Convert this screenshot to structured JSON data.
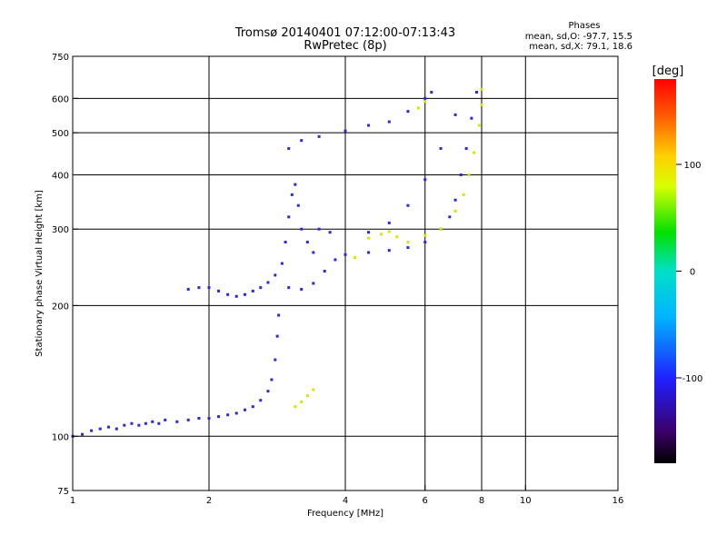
{
  "chart_data": {
    "type": "scatter",
    "title": "Tromsø 20140401 07:12:00-07:13:43",
    "subtitle": "RwPretec (8p)",
    "xlabel": "Frequency [MHz]",
    "ylabel": "Stationary phase Virtual Height [km]",
    "x_scale": "log",
    "y_scale": "log",
    "xlim": [
      1,
      16
    ],
    "ylim": [
      75,
      750
    ],
    "x_ticks": [
      1,
      2,
      4,
      6,
      8,
      10,
      16
    ],
    "y_ticks": [
      75,
      100,
      200,
      300,
      400,
      500,
      600,
      750
    ],
    "x_gridlines": [
      2,
      4,
      6,
      8,
      10
    ],
    "y_gridlines": [
      100,
      200,
      300,
      400,
      500,
      600
    ],
    "grid": true,
    "stats": {
      "heading": "Phases",
      "o_line": "mean, sd,O: -97.7, 15.5",
      "x_line": "mean, sd,X:  79.1, 18.6"
    },
    "colorbar": {
      "label": "[deg]",
      "range": [
        -180,
        180
      ],
      "ticks": [
        100,
        0,
        -100
      ]
    },
    "series": [
      {
        "name": "O",
        "mean_phase": -97.7,
        "sd_phase": 15.5,
        "points": [
          [
            1.0,
            100
          ],
          [
            1.05,
            101
          ],
          [
            1.1,
            103
          ],
          [
            1.15,
            104
          ],
          [
            1.2,
            105
          ],
          [
            1.25,
            104
          ],
          [
            1.3,
            106
          ],
          [
            1.35,
            107
          ],
          [
            1.4,
            106
          ],
          [
            1.45,
            107
          ],
          [
            1.5,
            108
          ],
          [
            1.55,
            107
          ],
          [
            1.6,
            109
          ],
          [
            1.7,
            108
          ],
          [
            1.8,
            109
          ],
          [
            1.9,
            110
          ],
          [
            2.0,
            110
          ],
          [
            2.1,
            111
          ],
          [
            2.2,
            112
          ],
          [
            2.3,
            113
          ],
          [
            2.4,
            115
          ],
          [
            2.5,
            117
          ],
          [
            2.6,
            121
          ],
          [
            2.7,
            127
          ],
          [
            2.75,
            135
          ],
          [
            2.8,
            150
          ],
          [
            2.83,
            170
          ],
          [
            2.85,
            190
          ],
          [
            1.8,
            218
          ],
          [
            1.9,
            220
          ],
          [
            2.0,
            220
          ],
          [
            2.1,
            216
          ],
          [
            2.2,
            212
          ],
          [
            2.3,
            210
          ],
          [
            2.4,
            212
          ],
          [
            2.5,
            216
          ],
          [
            2.6,
            220
          ],
          [
            2.7,
            226
          ],
          [
            2.8,
            235
          ],
          [
            2.9,
            250
          ],
          [
            2.95,
            280
          ],
          [
            3.0,
            320
          ],
          [
            3.05,
            360
          ],
          [
            3.1,
            380
          ],
          [
            3.15,
            340
          ],
          [
            3.2,
            300
          ],
          [
            3.3,
            280
          ],
          [
            3.4,
            265
          ],
          [
            3.5,
            300
          ],
          [
            3.7,
            295
          ],
          [
            3.0,
            220
          ],
          [
            3.2,
            218
          ],
          [
            3.4,
            225
          ],
          [
            3.6,
            240
          ],
          [
            3.8,
            255
          ],
          [
            4.0,
            262
          ],
          [
            4.5,
            265
          ],
          [
            5.0,
            268
          ],
          [
            5.5,
            272
          ],
          [
            6.0,
            280
          ],
          [
            6.5,
            300
          ],
          [
            6.8,
            320
          ],
          [
            7.0,
            350
          ],
          [
            7.2,
            400
          ],
          [
            7.4,
            460
          ],
          [
            7.6,
            540
          ],
          [
            7.8,
            620
          ],
          [
            4.5,
            295
          ],
          [
            5.0,
            310
          ],
          [
            5.5,
            340
          ],
          [
            6.0,
            390
          ],
          [
            6.5,
            460
          ],
          [
            7.0,
            550
          ],
          [
            3.0,
            460
          ],
          [
            3.2,
            480
          ],
          [
            3.5,
            490
          ],
          [
            4.0,
            505
          ],
          [
            4.5,
            520
          ],
          [
            5.0,
            530
          ],
          [
            5.5,
            560
          ],
          [
            6.0,
            600
          ],
          [
            6.2,
            620
          ]
        ]
      },
      {
        "name": "X",
        "mean_phase": 79.1,
        "sd_phase": 18.6,
        "points": [
          [
            3.1,
            117
          ],
          [
            3.2,
            120
          ],
          [
            3.3,
            124
          ],
          [
            3.4,
            128
          ],
          [
            4.2,
            258
          ],
          [
            4.5,
            286
          ],
          [
            4.8,
            292
          ],
          [
            5.0,
            296
          ],
          [
            5.2,
            288
          ],
          [
            5.5,
            280
          ],
          [
            6.0,
            290
          ],
          [
            6.5,
            300
          ],
          [
            7.0,
            330
          ],
          [
            7.3,
            360
          ],
          [
            7.5,
            400
          ],
          [
            7.7,
            450
          ],
          [
            7.9,
            520
          ],
          [
            8.0,
            580
          ],
          [
            8.0,
            630
          ],
          [
            5.8,
            570
          ],
          [
            6.0,
            590
          ]
        ]
      }
    ]
  }
}
